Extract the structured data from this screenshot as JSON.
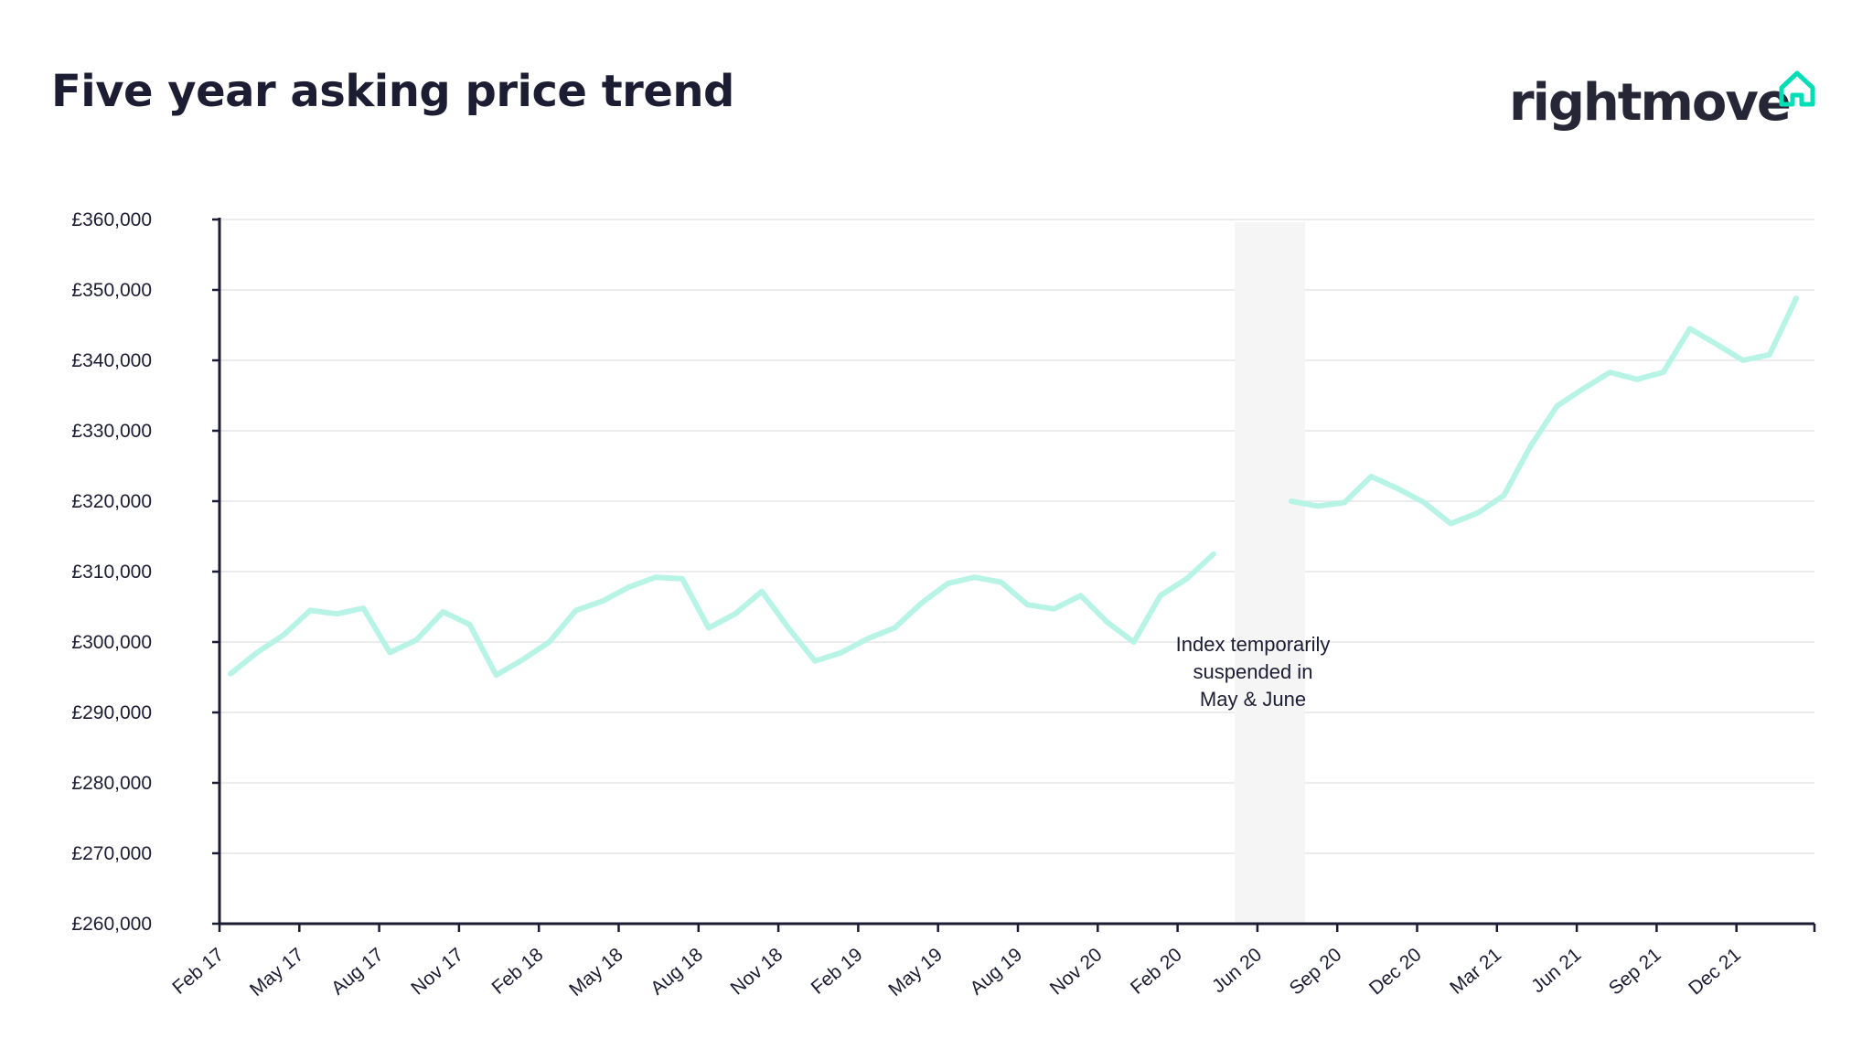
{
  "header": {
    "brand": "rightmove",
    "brand_color": "#262637",
    "brand_icon": "house-outline-icon",
    "brand_icon_color": "#00deb6"
  },
  "chart_data": {
    "type": "line",
    "title": "Five year asking price trend",
    "xlabel": "",
    "ylabel": "",
    "ylim": [
      260000,
      360000
    ],
    "y_ticks": [
      "£260,000",
      "£270,000",
      "£280,000",
      "£290,000",
      "£300,000",
      "£310,000",
      "£320,000",
      "£330,000",
      "£340,000",
      "£350,000",
      "£360,000"
    ],
    "x_ticks": [
      "Feb 17",
      "May 17",
      "Aug 17",
      "Nov 17",
      "Feb 18",
      "May 18",
      "Aug 18",
      "Nov 18",
      "Feb 19",
      "May 19",
      "Aug 19",
      "Nov 20",
      "Feb 20",
      "Jun 20",
      "Sep 20",
      "Dec 20",
      "Mar 21",
      "Jun 21",
      "Sep 21",
      "Dec 21"
    ],
    "grid": true,
    "line_color": "#b7f4e6",
    "annotation": {
      "lines": [
        "Index temporarily",
        "suspended in",
        "May & June"
      ],
      "band_color": "#f6f5f6"
    },
    "series": [
      {
        "segments": [
          [
            295500,
            298500,
            301000,
            304500,
            304000,
            304800,
            298500,
            300300,
            304300,
            302500,
            295300,
            297500,
            300000,
            304500,
            305800,
            307800,
            309200,
            309000,
            302000,
            304000,
            307200,
            302000,
            297300,
            298500,
            300500,
            302000,
            305500,
            308300,
            309200,
            308500,
            305300,
            304700,
            306600,
            302800,
            300000,
            306600,
            309000,
            312500
          ],
          [
            320000,
            319300,
            319800,
            323500,
            321800,
            319800,
            316800,
            318300,
            320800,
            327800,
            333500,
            336000,
            338300,
            337300,
            338300,
            344500,
            342300,
            340000,
            340800,
            348800
          ]
        ]
      }
    ]
  }
}
